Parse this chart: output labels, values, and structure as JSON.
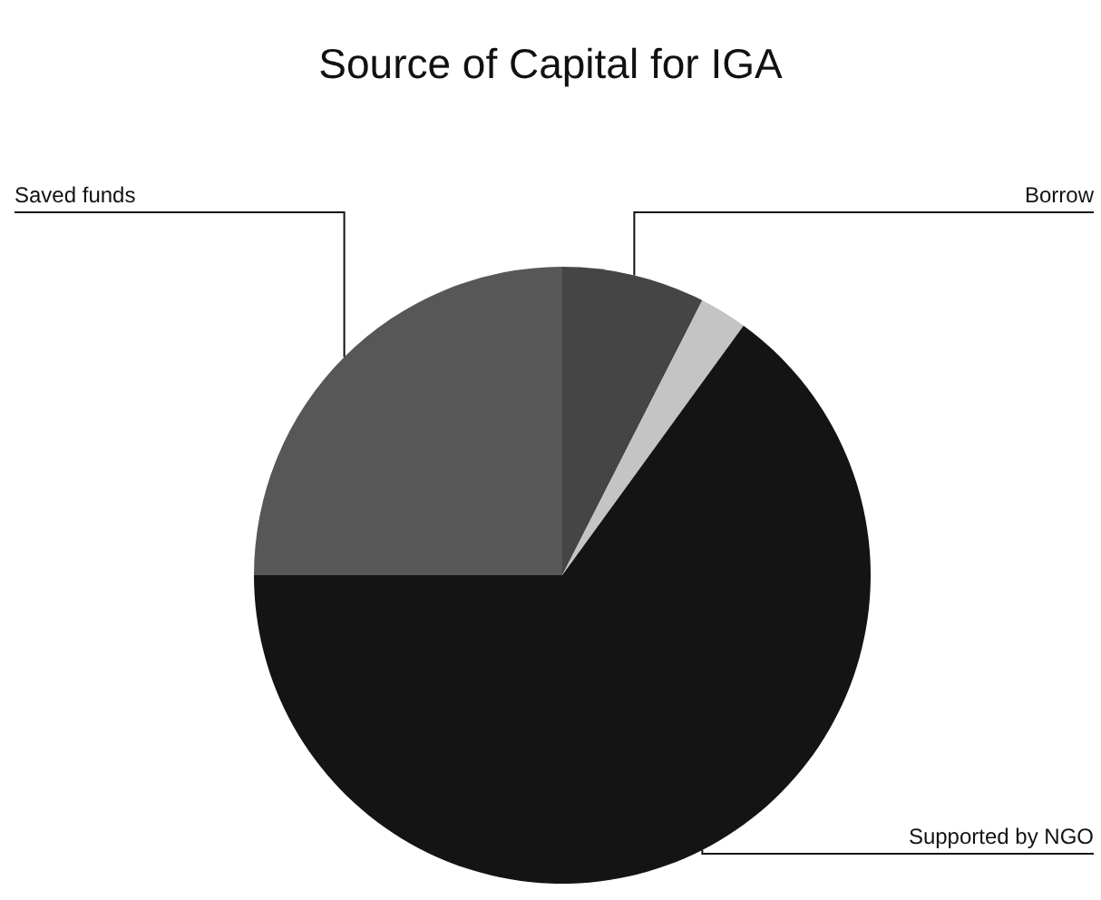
{
  "chart_data": {
    "type": "pie",
    "title": "Source of Capital for IGA",
    "categories": [
      "Borrow",
      null,
      "Supported by NGO",
      "Saved funds"
    ],
    "values": [
      7.5,
      2.5,
      65,
      25
    ],
    "colors": [
      "#454545",
      "#c4c4c4",
      "#141414",
      "#575757"
    ]
  }
}
